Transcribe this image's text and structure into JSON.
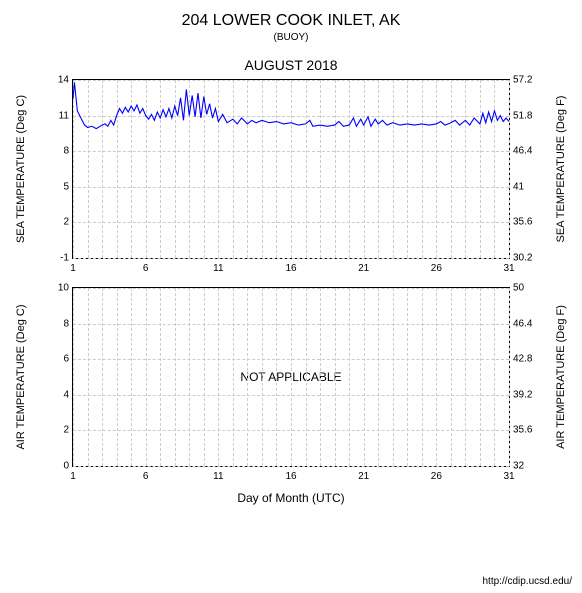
{
  "header": {
    "title": "204 LOWER COOK INLET, AK",
    "subtitle": "(BUOY)",
    "month": "AUGUST 2018"
  },
  "xaxis": {
    "label": "Day of Month (UTC)",
    "min": 1,
    "max": 31,
    "ticks": [
      1,
      6,
      11,
      16,
      21,
      26,
      31
    ],
    "minor_step": 1,
    "grid_color": "#cccccc"
  },
  "credit": "http://cdip.ucsd.edu/",
  "panels": [
    {
      "id": "sea-temp",
      "yl_label": "SEA TEMPERATURE (Deg C)",
      "yr_label": "SEA TEMPERATURE (Deg F)",
      "yl": {
        "min": -1,
        "max": 14,
        "ticks": [
          -1,
          2,
          5,
          8,
          11,
          14
        ]
      },
      "yr": {
        "min": 30.2,
        "max": 57.2,
        "ticks": [
          30.2,
          35.6,
          41,
          46.4,
          51.8,
          57.2
        ]
      },
      "line_color": "#0000ff",
      "line_width": 1.1,
      "background_color": "#ffffff",
      "series": [
        [
          1.0,
          12.4
        ],
        [
          1.1,
          13.8
        ],
        [
          1.2,
          12.6
        ],
        [
          1.3,
          11.4
        ],
        [
          1.5,
          10.9
        ],
        [
          1.8,
          10.2
        ],
        [
          2.0,
          10.0
        ],
        [
          2.3,
          10.1
        ],
        [
          2.6,
          9.9
        ],
        [
          3.0,
          10.2
        ],
        [
          3.2,
          10.3
        ],
        [
          3.4,
          10.1
        ],
        [
          3.6,
          10.6
        ],
        [
          3.8,
          10.2
        ],
        [
          4.0,
          11.0
        ],
        [
          4.2,
          11.6
        ],
        [
          4.4,
          11.2
        ],
        [
          4.6,
          11.7
        ],
        [
          4.8,
          11.3
        ],
        [
          5.0,
          11.8
        ],
        [
          5.2,
          11.4
        ],
        [
          5.4,
          11.9
        ],
        [
          5.6,
          11.2
        ],
        [
          5.8,
          11.6
        ],
        [
          6.0,
          11.0
        ],
        [
          6.2,
          10.7
        ],
        [
          6.4,
          11.1
        ],
        [
          6.6,
          10.6
        ],
        [
          6.8,
          11.3
        ],
        [
          7.0,
          10.8
        ],
        [
          7.2,
          11.5
        ],
        [
          7.4,
          10.9
        ],
        [
          7.6,
          11.6
        ],
        [
          7.8,
          10.8
        ],
        [
          8.0,
          11.8
        ],
        [
          8.2,
          11.0
        ],
        [
          8.4,
          12.5
        ],
        [
          8.6,
          10.6
        ],
        [
          8.8,
          13.2
        ],
        [
          9.0,
          11.0
        ],
        [
          9.2,
          12.7
        ],
        [
          9.4,
          10.9
        ],
        [
          9.6,
          12.9
        ],
        [
          9.8,
          10.8
        ],
        [
          10.0,
          12.6
        ],
        [
          10.2,
          11.1
        ],
        [
          10.4,
          12.0
        ],
        [
          10.6,
          10.8
        ],
        [
          10.8,
          11.6
        ],
        [
          11.0,
          10.5
        ],
        [
          11.3,
          11.1
        ],
        [
          11.6,
          10.4
        ],
        [
          12.0,
          10.7
        ],
        [
          12.3,
          10.3
        ],
        [
          12.6,
          10.8
        ],
        [
          13.0,
          10.3
        ],
        [
          13.3,
          10.6
        ],
        [
          13.6,
          10.4
        ],
        [
          14.0,
          10.6
        ],
        [
          14.5,
          10.4
        ],
        [
          15.0,
          10.5
        ],
        [
          15.5,
          10.3
        ],
        [
          16.0,
          10.4
        ],
        [
          16.5,
          10.2
        ],
        [
          17.0,
          10.3
        ],
        [
          17.3,
          10.6
        ],
        [
          17.5,
          10.1
        ],
        [
          18.0,
          10.2
        ],
        [
          18.5,
          10.1
        ],
        [
          19.0,
          10.2
        ],
        [
          19.3,
          10.5
        ],
        [
          19.6,
          10.1
        ],
        [
          20.0,
          10.2
        ],
        [
          20.3,
          10.8
        ],
        [
          20.5,
          10.1
        ],
        [
          20.8,
          10.7
        ],
        [
          21.0,
          10.2
        ],
        [
          21.3,
          10.9
        ],
        [
          21.5,
          10.1
        ],
        [
          21.8,
          10.7
        ],
        [
          22.0,
          10.3
        ],
        [
          22.3,
          10.6
        ],
        [
          22.6,
          10.2
        ],
        [
          23.0,
          10.4
        ],
        [
          23.5,
          10.2
        ],
        [
          24.0,
          10.3
        ],
        [
          24.5,
          10.2
        ],
        [
          25.0,
          10.3
        ],
        [
          25.5,
          10.2
        ],
        [
          26.0,
          10.3
        ],
        [
          26.3,
          10.5
        ],
        [
          26.6,
          10.2
        ],
        [
          27.0,
          10.4
        ],
        [
          27.3,
          10.6
        ],
        [
          27.6,
          10.2
        ],
        [
          28.0,
          10.6
        ],
        [
          28.3,
          10.2
        ],
        [
          28.6,
          10.8
        ],
        [
          29.0,
          10.3
        ],
        [
          29.2,
          11.2
        ],
        [
          29.4,
          10.4
        ],
        [
          29.6,
          11.3
        ],
        [
          29.8,
          10.5
        ],
        [
          30.0,
          11.4
        ],
        [
          30.2,
          10.6
        ],
        [
          30.4,
          11.0
        ],
        [
          30.6,
          10.5
        ],
        [
          30.8,
          10.8
        ],
        [
          31.0,
          10.5
        ]
      ]
    },
    {
      "id": "air-temp",
      "yl_label": "AIR TEMPERATURE (Deg C)",
      "yr_label": "AIR TEMPERATURE (Deg F)",
      "yl": {
        "min": 0,
        "max": 10,
        "ticks": [
          0,
          2,
          4,
          6,
          8,
          10
        ]
      },
      "yr": {
        "min": 32,
        "max": 50,
        "ticks": [
          32,
          35.6,
          39.2,
          42.8,
          46.4,
          50
        ]
      },
      "line_color": "#0000ff",
      "line_width": 1.1,
      "background_color": "#ffffff",
      "not_applicable": "NOT APPLICABLE",
      "series": null
    }
  ]
}
